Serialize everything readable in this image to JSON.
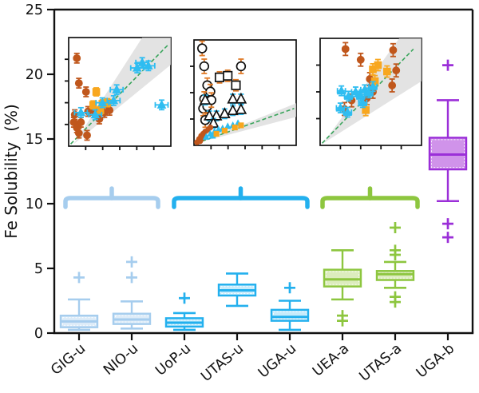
{
  "figure": {
    "title": "",
    "ylabel": "Fe Solubility  (%)"
  },
  "chart_data": {
    "type": "boxplot",
    "title": "",
    "xlabel": "",
    "ylabel": "Fe Solubility (%)",
    "ylim": [
      0,
      25
    ],
    "yticks": [
      0,
      5,
      10,
      15,
      20,
      25
    ],
    "grid": false,
    "categories": [
      "GIG-u",
      "NIO-u",
      "UoP-u",
      "UTAS-u",
      "UGA-u",
      "UEA-a",
      "UTAS-a",
      "UGA-b"
    ],
    "group_styles": {
      "unamended_pale": {
        "edge": "#a6cdee",
        "fill": "#dcebf8"
      },
      "unamended_blue": {
        "edge": "#23b0ee",
        "fill": "#c6ebfb"
      },
      "amended_green": {
        "edge": "#8dc63f",
        "fill": "#dcecbd"
      },
      "bottle_purple": {
        "edge": "#9b2fd8",
        "fill": "#d093ea"
      }
    },
    "boxes": [
      {
        "label": "GIG-u",
        "group": "unamended_pale",
        "whisker_low": 0.25,
        "q1": 0.45,
        "median": 0.9,
        "q3": 1.35,
        "whisker_high": 2.6,
        "outliers_high": [
          4.3
        ],
        "outliers_low": []
      },
      {
        "label": "NIO-u",
        "group": "unamended_pale",
        "whisker_low": 0.35,
        "q1": 0.7,
        "median": 1.05,
        "q3": 1.5,
        "whisker_high": 2.45,
        "outliers_high": [
          5.5,
          4.3
        ],
        "outliers_low": []
      },
      {
        "label": "UoP-u",
        "group": "unamended_blue",
        "whisker_low": 0.25,
        "q1": 0.5,
        "median": 0.8,
        "q3": 1.15,
        "whisker_high": 1.55,
        "outliers_high": [
          2.7
        ],
        "outliers_low": []
      },
      {
        "label": "UTAS-u",
        "group": "unamended_blue",
        "whisker_low": 2.1,
        "q1": 2.9,
        "median": 3.3,
        "q3": 3.75,
        "whisker_high": 4.6,
        "outliers_high": [],
        "outliers_low": []
      },
      {
        "label": "UGA-u",
        "group": "unamended_blue",
        "whisker_low": 0.25,
        "q1": 0.95,
        "median": 1.25,
        "q3": 1.8,
        "whisker_high": 2.5,
        "outliers_high": [
          3.5
        ],
        "outliers_low": []
      },
      {
        "label": "UEA-a",
        "group": "amended_green",
        "whisker_low": 2.6,
        "q1": 3.6,
        "median": 4.15,
        "q3": 4.9,
        "whisker_high": 6.4,
        "outliers_high": [],
        "outliers_low": [
          1.35,
          0.95
        ]
      },
      {
        "label": "UTAS-a",
        "group": "amended_green",
        "whisker_low": 3.5,
        "q1": 4.1,
        "median": 4.55,
        "q3": 4.8,
        "whisker_high": 5.5,
        "outliers_high": [
          8.15,
          6.4,
          6.05
        ],
        "outliers_low": [
          2.8,
          2.4
        ]
      },
      {
        "label": "UGA-b",
        "group": "bottle_purple",
        "whisker_low": 10.2,
        "q1": 12.65,
        "median": 13.8,
        "q3": 15.1,
        "whisker_high": 18.0,
        "outliers_high": [
          20.7
        ],
        "outliers_low": [
          8.45,
          7.4
        ]
      }
    ],
    "braces": [
      {
        "from": "GIG-u",
        "to": "NIO-u",
        "color": "#a6cdee"
      },
      {
        "from": "UoP-u",
        "to": "UGA-u",
        "color": "#23b0ee"
      },
      {
        "from": "UEA-a",
        "to": "UTAS-a",
        "color": "#8dc63f"
      }
    ],
    "insets": [
      {
        "name": "inset-scatter-1",
        "xticks": 5,
        "yticks": 4,
        "band": [
          [
            0.05,
            0.02
          ],
          [
            0.72,
            1.0
          ],
          [
            1.0,
            1.0
          ],
          [
            1.0,
            0.75
          ]
        ],
        "line": [
          0.02,
          0.02,
          0.97,
          0.93
        ],
        "line_color": "#3aa55c",
        "band_color": "#d9d9d9",
        "series": [
          {
            "marker": "circle",
            "open": false,
            "small": false,
            "color": "#c0571c",
            "err": "y",
            "err_color": "#c0571c",
            "ey": 6,
            "ex": 0,
            "points": [
              [
                0.08,
                0.81
              ],
              [
                0.1,
                0.58
              ],
              [
                0.17,
                0.5
              ],
              [
                0.06,
                0.29
              ],
              [
                0.05,
                0.22
              ],
              [
                0.08,
                0.17
              ],
              [
                0.12,
                0.22
              ],
              [
                0.19,
                0.32
              ],
              [
                0.24,
                0.33
              ],
              [
                0.3,
                0.25
              ],
              [
                0.35,
                0.31
              ],
              [
                0.4,
                0.33
              ],
              [
                0.18,
                0.1
              ],
              [
                0.1,
                0.12
              ]
            ]
          },
          {
            "marker": "square",
            "open": false,
            "small": false,
            "color": "#f8a71f",
            "err": "y",
            "err_color": "#f8a71f",
            "ey": 5,
            "ex": 0,
            "points": [
              [
                0.27,
                0.5
              ],
              [
                0.24,
                0.38
              ],
              [
                0.33,
                0.39
              ],
              [
                0.38,
                0.4
              ],
              [
                0.31,
                0.33
              ]
            ]
          },
          {
            "marker": "triangle",
            "open": false,
            "small": false,
            "color": "#2fbdf1",
            "err": "xy",
            "err_color": "#2fbdf1",
            "ey": 6,
            "ex": 8,
            "points": [
              [
                0.12,
                0.31
              ],
              [
                0.26,
                0.29
              ],
              [
                0.33,
                0.4
              ],
              [
                0.44,
                0.42
              ],
              [
                0.47,
                0.52
              ],
              [
                0.67,
                0.72
              ],
              [
                0.72,
                0.77
              ],
              [
                0.78,
                0.74
              ],
              [
                0.91,
                0.38
              ]
            ]
          }
        ]
      },
      {
        "name": "inset-scatter-2",
        "xticks": 5,
        "yticks": 3,
        "band": [
          [
            0.02,
            0.02
          ],
          [
            1.0,
            0.4
          ],
          [
            1.0,
            0.27
          ]
        ],
        "line": [
          0.02,
          0.02,
          0.98,
          0.35
        ],
        "line_color": "#3aa55c",
        "band_color": "#d9d9d9",
        "series": [
          {
            "marker": "circle",
            "open": true,
            "small": false,
            "color": "#111111",
            "err": "y",
            "err_color": "#e07b28",
            "ey": 9,
            "ex": 0,
            "points": [
              [
                0.08,
                0.92
              ],
              [
                0.1,
                0.75
              ],
              [
                0.13,
                0.57
              ],
              [
                0.16,
                0.51
              ],
              [
                0.1,
                0.44
              ],
              [
                0.09,
                0.35
              ],
              [
                0.13,
                0.37
              ],
              [
                0.17,
                0.43
              ],
              [
                0.11,
                0.24
              ],
              [
                0.46,
                0.75
              ]
            ]
          },
          {
            "marker": "square",
            "open": true,
            "small": false,
            "color": "#111111",
            "err": "y",
            "err_color": "#e07b28",
            "ey": 7,
            "ex": 0,
            "points": [
              [
                0.25,
                0.645
              ],
              [
                0.33,
                0.66
              ],
              [
                0.41,
                0.57
              ]
            ]
          },
          {
            "marker": "triangle",
            "open": true,
            "small": false,
            "color": "#111111",
            "err": "y",
            "err_color": "#2fbdf1",
            "ey": 6,
            "ex": 0,
            "points": [
              [
                0.11,
                0.43
              ],
              [
                0.38,
                0.44
              ],
              [
                0.46,
                0.44
              ],
              [
                0.22,
                0.28
              ],
              [
                0.3,
                0.3
              ],
              [
                0.38,
                0.33
              ],
              [
                0.46,
                0.34
              ],
              [
                0.15,
                0.28
              ],
              [
                0.19,
                0.21
              ]
            ]
          },
          {
            "marker": "circle",
            "open": false,
            "small": true,
            "color": "#c0571c",
            "err": "none",
            "err_color": "#c0571c",
            "ey": 0,
            "ex": 0,
            "points": [
              [
                0.03,
                0.03
              ],
              [
                0.05,
                0.06
              ],
              [
                0.07,
                0.09
              ],
              [
                0.09,
                0.11
              ],
              [
                0.11,
                0.13
              ],
              [
                0.14,
                0.15
              ],
              [
                0.06,
                0.04
              ],
              [
                0.08,
                0.07
              ],
              [
                0.16,
                0.17
              ]
            ]
          },
          {
            "marker": "triangle",
            "open": false,
            "small": true,
            "color": "#2fbdf1",
            "err": "none",
            "err_color": "#2fbdf1",
            "ey": 0,
            "ex": 0,
            "points": [
              [
                0.12,
                0.08
              ],
              [
                0.16,
                0.11
              ],
              [
                0.2,
                0.13
              ],
              [
                0.24,
                0.15
              ],
              [
                0.28,
                0.16
              ],
              [
                0.33,
                0.18
              ],
              [
                0.38,
                0.19
              ],
              [
                0.18,
                0.09
              ],
              [
                0.43,
                0.21
              ]
            ]
          },
          {
            "marker": "square",
            "open": false,
            "small": true,
            "color": "#f8a71f",
            "err": "none",
            "err_color": "#f8a71f",
            "ey": 0,
            "ex": 0,
            "points": [
              [
                0.22,
                0.11
              ],
              [
                0.3,
                0.14
              ],
              [
                0.4,
                0.17
              ],
              [
                0.46,
                0.19
              ]
            ]
          }
        ]
      },
      {
        "name": "inset-scatter-3",
        "xticks": 4,
        "yticks": 3,
        "band": [
          [
            0.03,
            0.02
          ],
          [
            0.78,
            1.0
          ],
          [
            1.0,
            1.0
          ],
          [
            1.0,
            0.6
          ]
        ],
        "line": [
          0.02,
          0.02,
          0.92,
          0.9
        ],
        "line_color": "#3aa55c",
        "band_color": "#d9d9d9",
        "series": [
          {
            "marker": "circle",
            "open": false,
            "small": false,
            "color": "#c0571c",
            "err": "y",
            "err_color": "#c0571c",
            "ey": 8,
            "ex": 0,
            "points": [
              [
                0.25,
                0.9
              ],
              [
                0.4,
                0.8
              ],
              [
                0.49,
                0.62
              ],
              [
                0.72,
                0.89
              ],
              [
                0.75,
                0.7
              ],
              [
                0.71,
                0.56
              ],
              [
                0.31,
                0.42
              ],
              [
                0.24,
                0.34
              ],
              [
                0.46,
                0.44
              ],
              [
                0.52,
                0.5
              ]
            ]
          },
          {
            "marker": "square",
            "open": false,
            "small": false,
            "color": "#f8a71f",
            "err": "y",
            "err_color": "#f8a71f",
            "ey": 7,
            "ex": 0,
            "points": [
              [
                0.52,
                0.71
              ],
              [
                0.57,
                0.75
              ],
              [
                0.66,
                0.69
              ],
              [
                0.54,
                0.6
              ],
              [
                0.45,
                0.33
              ]
            ]
          },
          {
            "marker": "triangle",
            "open": false,
            "small": false,
            "color": "#2fbdf1",
            "err": "xy",
            "err_color": "#2fbdf1",
            "ey": 6,
            "ex": 5,
            "points": [
              [
                0.21,
                0.51
              ],
              [
                0.28,
                0.46
              ],
              [
                0.35,
                0.5
              ],
              [
                0.4,
                0.46
              ],
              [
                0.44,
                0.52
              ],
              [
                0.48,
                0.49
              ],
              [
                0.2,
                0.35
              ],
              [
                0.27,
                0.31
              ],
              [
                0.42,
                0.4
              ],
              [
                0.52,
                0.55
              ]
            ]
          }
        ]
      }
    ]
  }
}
